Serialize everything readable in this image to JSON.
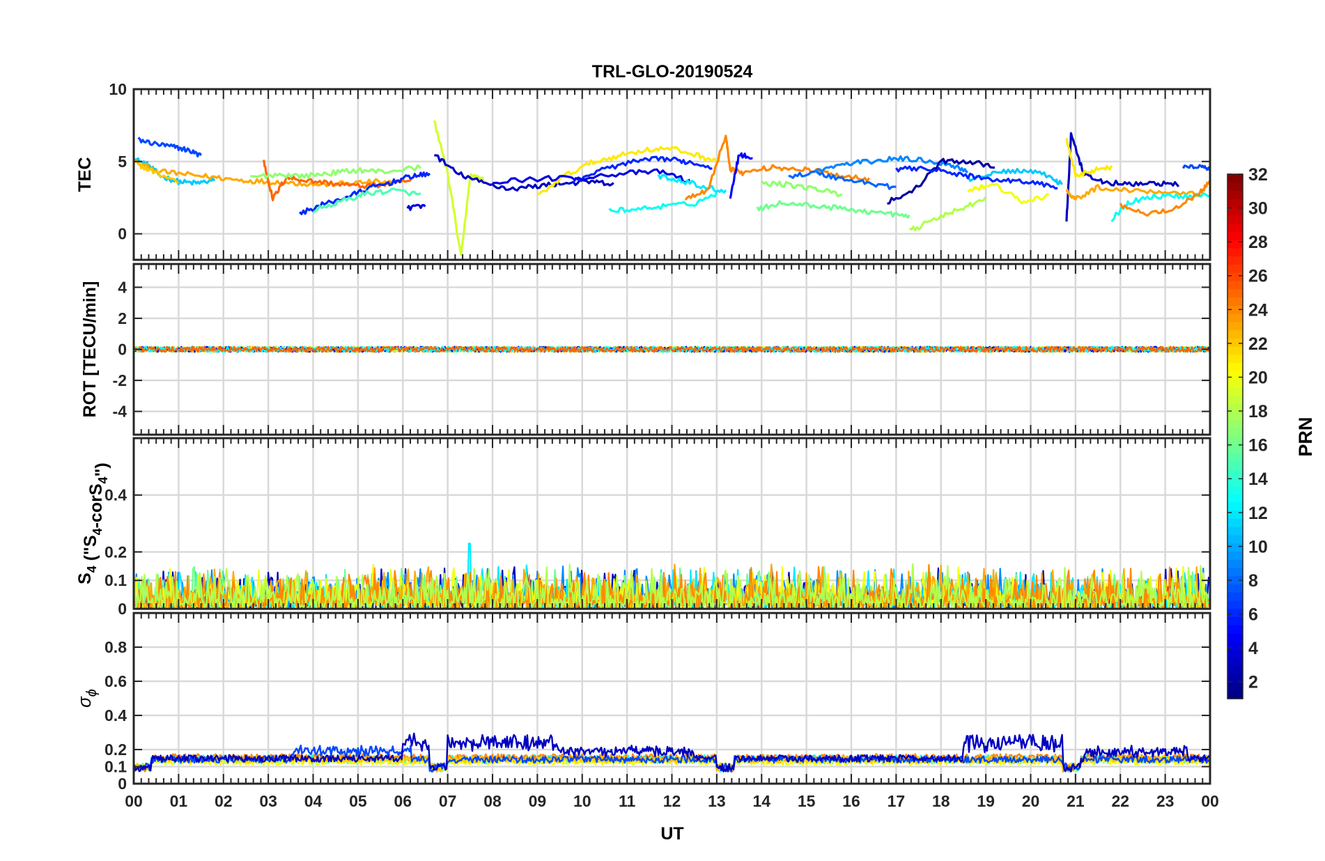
{
  "title": "TRL-GLO-20190524",
  "chart_data": [
    {
      "type": "line",
      "id": "tec",
      "ylabel": "TEC",
      "ylim": [
        -1.8,
        10
      ],
      "yticks": [
        0,
        5,
        10
      ],
      "xlim": [
        0,
        24
      ],
      "series": [
        {
          "prn": 11,
          "x": [
            0.0,
            0.3,
            0.6,
            1.0,
            1.4,
            1.8
          ],
          "values": [
            5.2,
            4.8,
            4.0,
            3.6,
            3.5,
            3.7
          ]
        },
        {
          "prn": 7,
          "x": [
            0.1,
            0.5,
            0.9,
            1.2,
            1.5
          ],
          "values": [
            6.5,
            6.2,
            6.0,
            5.8,
            5.4
          ]
        },
        {
          "prn": 23,
          "x": [
            0.0,
            0.6,
            1.2,
            1.8,
            2.4,
            3.0,
            3.6,
            4.2,
            4.8,
            5.4,
            6.0
          ],
          "values": [
            5.0,
            4.3,
            4.1,
            3.9,
            3.7,
            3.6,
            3.5,
            3.4,
            3.5,
            3.6,
            3.5
          ]
        },
        {
          "prn": 22,
          "x": [
            0.1,
            0.5,
            1.0
          ],
          "values": [
            4.8,
            4.2,
            3.6
          ]
        },
        {
          "prn": 25,
          "x": [
            2.9,
            3.1,
            3.4,
            3.8,
            4.4,
            5.0,
            5.6,
            6.2
          ],
          "values": [
            5.0,
            2.4,
            3.9,
            3.7,
            3.5,
            3.3,
            3.4,
            3.7
          ]
        },
        {
          "prn": 17,
          "x": [
            2.6,
            3.2,
            3.8,
            4.4,
            5.0,
            5.6,
            6.4
          ],
          "values": [
            3.9,
            4.1,
            4.0,
            4.2,
            4.4,
            4.3,
            4.6
          ]
        },
        {
          "prn": 6,
          "x": [
            3.7,
            4.2,
            4.8,
            5.3,
            5.8,
            6.2,
            6.6
          ],
          "values": [
            1.4,
            2.0,
            2.6,
            3.2,
            3.6,
            4.0,
            4.1
          ]
        },
        {
          "prn": 15,
          "x": [
            4.0,
            4.6,
            5.2,
            5.8,
            6.4
          ],
          "values": [
            1.6,
            2.2,
            2.8,
            3.0,
            2.7
          ]
        },
        {
          "prn": 4,
          "x": [
            6.1,
            6.5
          ],
          "values": [
            1.8,
            1.9
          ]
        },
        {
          "prn": 19,
          "x": [
            6.7,
            7.0,
            7.3,
            7.5,
            7.8
          ],
          "values": [
            7.8,
            4.2,
            -1.6,
            4.0,
            3.8
          ]
        },
        {
          "prn": 3,
          "x": [
            6.7,
            7.2,
            7.8,
            8.4,
            9.0,
            9.6,
            10.2,
            10.7
          ],
          "values": [
            5.5,
            4.2,
            3.5,
            3.1,
            3.3,
            3.5,
            3.6,
            3.4
          ]
        },
        {
          "prn": 21,
          "x": [
            9.0,
            9.6,
            10.2,
            10.8,
            11.4,
            12.0,
            12.6,
            13.0
          ],
          "values": [
            2.6,
            4.0,
            4.9,
            5.4,
            5.8,
            5.9,
            5.4,
            5.0
          ]
        },
        {
          "prn": 6,
          "x": [
            9.8,
            10.5,
            11.2,
            11.8,
            12.3,
            12.9
          ],
          "values": [
            3.6,
            4.5,
            5.0,
            5.2,
            5.0,
            4.6
          ]
        },
        {
          "prn": 4,
          "x": [
            8.0,
            9.0,
            10.0,
            11.0,
            11.8,
            12.4
          ],
          "values": [
            3.6,
            3.8,
            3.9,
            4.2,
            4.3,
            3.6
          ]
        },
        {
          "prn": 13,
          "x": [
            10.6,
            11.2,
            11.8,
            12.5,
            13.0
          ],
          "values": [
            1.6,
            1.7,
            1.9,
            2.1,
            2.8
          ]
        },
        {
          "prn": 12,
          "x": [
            11.7,
            12.2,
            12.8,
            13.2
          ],
          "values": [
            4.0,
            3.7,
            3.2,
            2.9
          ]
        },
        {
          "prn": 24,
          "x": [
            12.3,
            12.8,
            13.2,
            13.3,
            13.6,
            14.2,
            14.8,
            15.3,
            15.8,
            16.4
          ],
          "values": [
            2.5,
            3.0,
            6.8,
            4.5,
            4.2,
            4.6,
            4.5,
            4.3,
            4.0,
            3.8
          ]
        },
        {
          "prn": 5,
          "x": [
            13.3,
            13.5,
            13.8
          ],
          "values": [
            2.6,
            5.5,
            5.2
          ]
        },
        {
          "prn": 16,
          "x": [
            13.9,
            14.4,
            15.0,
            15.6,
            16.2,
            16.8,
            17.3
          ],
          "values": [
            1.7,
            2.1,
            2.0,
            1.8,
            1.6,
            1.4,
            1.2
          ]
        },
        {
          "prn": 17,
          "x": [
            14.0,
            14.6,
            15.2,
            15.8
          ],
          "values": [
            3.5,
            3.4,
            3.1,
            2.7
          ]
        },
        {
          "prn": 8,
          "x": [
            14.6,
            15.2,
            15.8,
            16.4,
            17.0
          ],
          "values": [
            4.0,
            4.2,
            3.8,
            3.5,
            3.2
          ]
        },
        {
          "prn": 9,
          "x": [
            15.2,
            15.8,
            16.4,
            17.0,
            17.6,
            18.2,
            18.6
          ],
          "values": [
            4.3,
            4.8,
            5.0,
            5.2,
            5.1,
            4.8,
            4.3
          ]
        },
        {
          "prn": 2,
          "x": [
            16.8,
            17.4,
            18.0,
            18.6,
            19.2
          ],
          "values": [
            2.2,
            3.0,
            5.0,
            5.0,
            4.7
          ]
        },
        {
          "prn": 18,
          "x": [
            17.3,
            17.8,
            18.4,
            19.0
          ],
          "values": [
            0.2,
            0.9,
            1.7,
            2.4
          ]
        },
        {
          "prn": 20,
          "x": [
            18.6,
            19.2,
            19.8,
            20.4
          ],
          "values": [
            3.0,
            3.4,
            2.2,
            2.6
          ]
        },
        {
          "prn": 11,
          "x": [
            18.6,
            19.2,
            19.8,
            20.4,
            20.7
          ],
          "values": [
            3.8,
            4.2,
            4.4,
            4.0,
            3.4
          ]
        },
        {
          "prn": 6,
          "x": [
            17.0,
            17.6,
            18.2,
            18.8,
            19.4,
            20.0,
            20.6
          ],
          "values": [
            4.4,
            4.6,
            4.2,
            3.9,
            3.7,
            3.6,
            3.2
          ]
        },
        {
          "prn": 3,
          "x": [
            20.8,
            20.9,
            21.2,
            21.6,
            22.2,
            22.8,
            23.3
          ],
          "values": [
            0.9,
            6.8,
            4.0,
            3.6,
            3.4,
            3.5,
            3.4
          ]
        },
        {
          "prn": 21,
          "x": [
            20.8,
            21.0,
            21.4,
            21.8
          ],
          "values": [
            6.5,
            4.0,
            4.4,
            4.6
          ]
        },
        {
          "prn": 23,
          "x": [
            20.8,
            21.0,
            21.5,
            22.2,
            23.0,
            23.8
          ],
          "values": [
            3.0,
            2.4,
            3.2,
            3.0,
            2.9,
            2.8
          ]
        },
        {
          "prn": 13,
          "x": [
            21.8,
            22.2,
            22.8,
            23.4,
            24.0
          ],
          "values": [
            1.0,
            2.2,
            2.6,
            2.6,
            2.7
          ]
        },
        {
          "prn": 24,
          "x": [
            22.0,
            22.6,
            23.2,
            23.8,
            24.0
          ],
          "values": [
            2.0,
            1.4,
            1.7,
            2.9,
            3.6
          ]
        },
        {
          "prn": 7,
          "x": [
            23.4,
            23.8,
            24.0
          ],
          "values": [
            4.6,
            4.7,
            4.5
          ]
        }
      ]
    },
    {
      "type": "line",
      "id": "rot",
      "ylabel": "ROT [TECU/min]",
      "ylim": [
        -5.5,
        5.5
      ],
      "yticks": [
        -4,
        -2,
        0,
        2,
        4
      ],
      "xlim": [
        0,
        24
      ],
      "note": "all satellites near 0 with noise about ±0.15"
    },
    {
      "type": "line",
      "id": "s4",
      "ylabel": "S",
      "ylabel_sub": "4",
      "ylabel_paren": " (\"S",
      "ylabel_paren_sub": "4",
      "ylabel_cor": "-corS",
      "ylabel_cor_sub": "4",
      "ylabel_end": "\")",
      "ylim": [
        0,
        0.6
      ],
      "yticks": [
        0,
        0.1,
        0.2,
        0.4
      ],
      "xlim": [
        0,
        24
      ],
      "note": "values mostly 0.0-0.18, peak about 0.23 near 07:30"
    },
    {
      "type": "line",
      "id": "sigphi",
      "ylabel": "σ",
      "ylabel_sub": "ϕ",
      "ylim": [
        0,
        1.0
      ],
      "yticks": [
        0,
        0.1,
        0.2,
        0.4,
        0.6,
        0.8
      ],
      "xlim": [
        0,
        24
      ],
      "note": "baseline about 0.12-0.17, PRN 2-3 elevated to about 0.3 during 06-09 and 18.5-20.5 UT"
    }
  ],
  "xaxis": {
    "label": "UT",
    "ticks": [
      "00",
      "01",
      "02",
      "03",
      "04",
      "05",
      "06",
      "07",
      "08",
      "09",
      "10",
      "11",
      "12",
      "13",
      "14",
      "15",
      "16",
      "17",
      "18",
      "19",
      "20",
      "21",
      "22",
      "23",
      "00"
    ]
  },
  "colorbar": {
    "label": "PRN",
    "range": [
      1,
      32
    ],
    "ticks": [
      "2",
      "4",
      "6",
      "8",
      "10",
      "12",
      "14",
      "16",
      "18",
      "20",
      "22",
      "24",
      "26",
      "28",
      "30",
      "32"
    ]
  },
  "colors": {
    "jet_stops": [
      "#00007f",
      "#0000ff",
      "#007fff",
      "#00ffff",
      "#7fff7f",
      "#ffff00",
      "#ff7f00",
      "#ff0000",
      "#7f0000"
    ]
  }
}
